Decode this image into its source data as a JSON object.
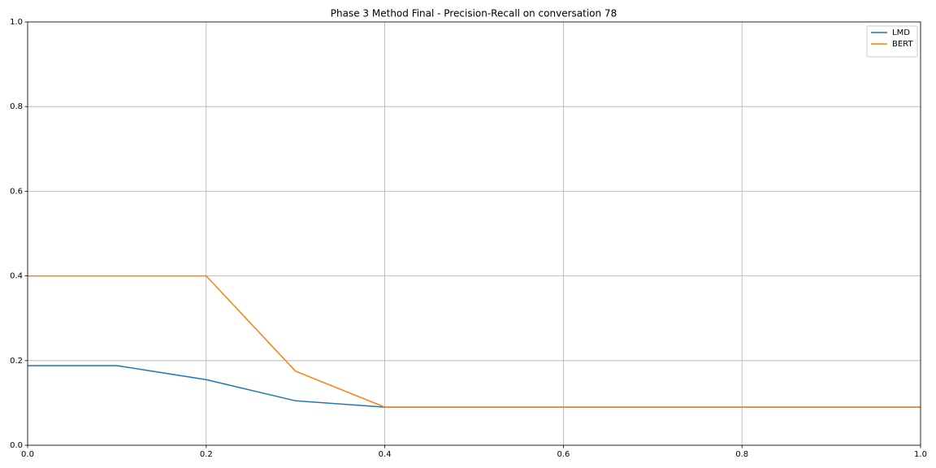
{
  "chart_data": {
    "type": "line",
    "title": "Phase 3 Method Final - Precision-Recall on conversation 78",
    "x": [
      0,
      0.1,
      0.2,
      0.3,
      0.4,
      0.5,
      0.6,
      0.7,
      0.8,
      0.9,
      1
    ],
    "series": [
      {
        "name": "LMD",
        "color": "#1f77b4",
        "values": [
          0.188,
          0.188,
          0.155,
          0.105,
          0.09,
          0.09,
          0.09,
          0.09,
          0.09,
          0.09,
          0.09
        ]
      },
      {
        "name": "BERT",
        "color": "#ff7f0e",
        "values": [
          0.4,
          0.4,
          0.4,
          0.175,
          0.09,
          0.09,
          0.09,
          0.09,
          0.09,
          0.09,
          0.09
        ]
      }
    ],
    "xlim": [
      0,
      1
    ],
    "ylim": [
      0,
      1
    ],
    "xticks": [
      {
        "value": 0,
        "label": "0.0"
      },
      0.2,
      0.4,
      0.6,
      0.8,
      {
        "value": 1,
        "label": "1.0"
      }
    ],
    "yticks": [
      {
        "value": 0,
        "label": "0.0"
      },
      0.2,
      0.4,
      0.6,
      0.8,
      {
        "value": 1,
        "label": "1.0"
      }
    ],
    "grid": true,
    "legend": "upper right"
  }
}
